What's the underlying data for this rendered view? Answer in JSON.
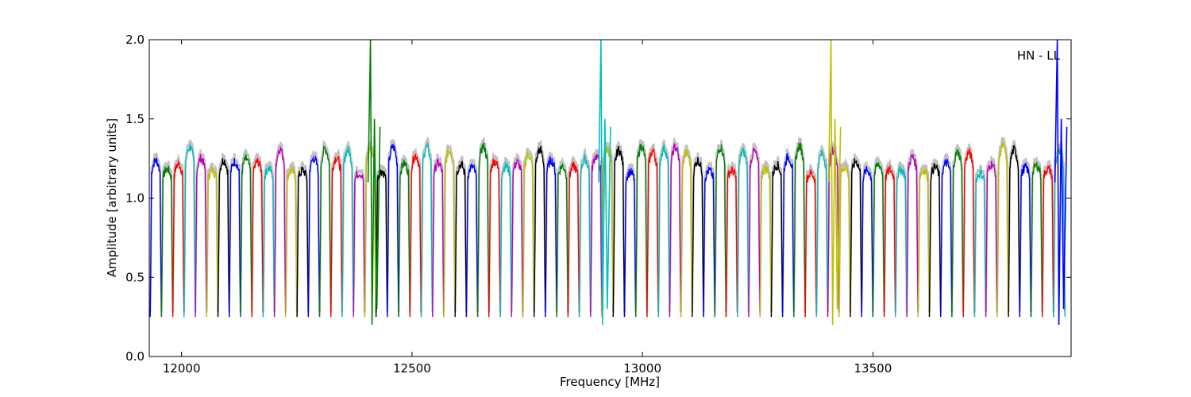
{
  "chart_data": {
    "type": "line",
    "title": "",
    "xlabel": "Frequency [MHz]",
    "ylabel": "Amplitude [arbitrary units]",
    "xlim": [
      11930,
      13930
    ],
    "ylim": [
      0,
      2.0
    ],
    "x_ticks": [
      12000,
      12500,
      13000,
      13500
    ],
    "x_tick_labels": [
      "12000",
      "12500",
      "13000",
      "13500"
    ],
    "y_ticks": [
      0.0,
      0.5,
      1.0,
      1.5,
      2.0
    ],
    "y_tick_labels": [
      "0.0",
      "0.5",
      "1.0",
      "1.5",
      "2.0"
    ],
    "grid": false,
    "legend": "none",
    "annotation": "HN - LL",
    "background_trace_color": "#c0c0c0",
    "palette": [
      "#0000ff",
      "#008000",
      "#ff0000",
      "#00bfbf",
      "#bf00bf",
      "#bfbf00",
      "#000000"
    ],
    "channel_spacing_mhz": 24.5,
    "channel_count": 81,
    "series": [
      {
        "name": "",
        "color": "#c0c0c0",
        "style": "background",
        "x": [
          11932,
          14000
        ],
        "y_min": 0.25,
        "y_peak": 1.35
      }
    ],
    "spikes": [
      {
        "x": 12410,
        "y": 2.0,
        "color": "#008000"
      },
      {
        "x": 12910,
        "y": 2.0,
        "color": "#00bfbf"
      },
      {
        "x": 13409,
        "y": 2.0,
        "color": "#bfbf00"
      },
      {
        "x": 13900,
        "y": 2.0,
        "color": "#0000ff"
      }
    ]
  }
}
